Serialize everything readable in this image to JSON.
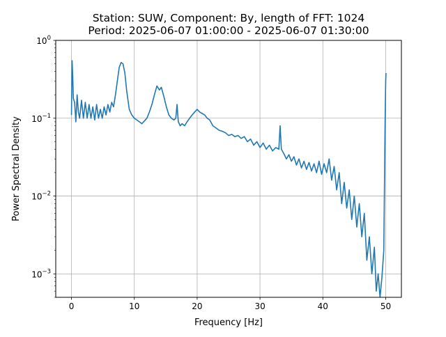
{
  "chart_data": {
    "type": "line",
    "title_line1": "Station: SUW, Component: By, length of FFT: 1024",
    "title_line2": "Period: 2025-06-07 01:00:00 - 2025-06-07 01:30:00",
    "xlabel": "Frequency [Hz]",
    "ylabel": "Power Spectral Density",
    "xlim": [
      -2.5,
      52.5
    ],
    "ylim": [
      0.0005,
      1
    ],
    "yscale": "log",
    "grid": true,
    "x_ticks": [
      {
        "value": 0,
        "label": "0"
      },
      {
        "value": 10,
        "label": "10"
      },
      {
        "value": 20,
        "label": "20"
      },
      {
        "value": 30,
        "label": "30"
      },
      {
        "value": 40,
        "label": "40"
      },
      {
        "value": 50,
        "label": "50"
      }
    ],
    "y_ticks": [
      {
        "value": 0.001,
        "base": "10",
        "exp": "−3"
      },
      {
        "value": 0.01,
        "base": "10",
        "exp": "−2"
      },
      {
        "value": 0.1,
        "base": "10",
        "exp": "−1"
      },
      {
        "value": 1,
        "base": "10",
        "exp": "0"
      }
    ],
    "series": [
      {
        "color": "#1f77b4",
        "points": [
          [
            0.0,
            0.11
          ],
          [
            0.1,
            0.55
          ],
          [
            0.2,
            0.35
          ],
          [
            0.3,
            0.18
          ],
          [
            0.5,
            0.16
          ],
          [
            0.7,
            0.09
          ],
          [
            0.9,
            0.2
          ],
          [
            1.1,
            0.12
          ],
          [
            1.3,
            0.1
          ],
          [
            1.6,
            0.17
          ],
          [
            1.9,
            0.1
          ],
          [
            2.2,
            0.16
          ],
          [
            2.5,
            0.1
          ],
          [
            2.8,
            0.15
          ],
          [
            3.1,
            0.1
          ],
          [
            3.4,
            0.14
          ],
          [
            3.7,
            0.095
          ],
          [
            4.0,
            0.15
          ],
          [
            4.3,
            0.1
          ],
          [
            4.6,
            0.13
          ],
          [
            4.9,
            0.1
          ],
          [
            5.2,
            0.14
          ],
          [
            5.5,
            0.11
          ],
          [
            5.8,
            0.15
          ],
          [
            6.1,
            0.12
          ],
          [
            6.4,
            0.16
          ],
          [
            6.7,
            0.14
          ],
          [
            7.0,
            0.2
          ],
          [
            7.3,
            0.3
          ],
          [
            7.6,
            0.45
          ],
          [
            7.9,
            0.52
          ],
          [
            8.2,
            0.5
          ],
          [
            8.5,
            0.38
          ],
          [
            8.8,
            0.22
          ],
          [
            9.2,
            0.13
          ],
          [
            9.6,
            0.11
          ],
          [
            10.0,
            0.1
          ],
          [
            10.4,
            0.095
          ],
          [
            10.8,
            0.09
          ],
          [
            11.2,
            0.085
          ],
          [
            11.6,
            0.092
          ],
          [
            12.0,
            0.1
          ],
          [
            12.4,
            0.12
          ],
          [
            12.8,
            0.15
          ],
          [
            13.2,
            0.2
          ],
          [
            13.6,
            0.26
          ],
          [
            14.0,
            0.23
          ],
          [
            14.3,
            0.25
          ],
          [
            14.7,
            0.19
          ],
          [
            15.1,
            0.14
          ],
          [
            15.5,
            0.11
          ],
          [
            15.9,
            0.1
          ],
          [
            16.3,
            0.095
          ],
          [
            16.6,
            0.1
          ],
          [
            16.8,
            0.15
          ],
          [
            17.0,
            0.09
          ],
          [
            17.3,
            0.08
          ],
          [
            17.6,
            0.085
          ],
          [
            18.0,
            0.08
          ],
          [
            18.4,
            0.09
          ],
          [
            18.8,
            0.1
          ],
          [
            19.2,
            0.11
          ],
          [
            19.6,
            0.12
          ],
          [
            20.0,
            0.13
          ],
          [
            20.4,
            0.12
          ],
          [
            20.8,
            0.115
          ],
          [
            21.2,
            0.11
          ],
          [
            21.6,
            0.1
          ],
          [
            22.0,
            0.095
          ],
          [
            22.5,
            0.08
          ],
          [
            23.0,
            0.075
          ],
          [
            23.5,
            0.07
          ],
          [
            24.0,
            0.068
          ],
          [
            24.5,
            0.065
          ],
          [
            25.0,
            0.06
          ],
          [
            25.5,
            0.062
          ],
          [
            26.0,
            0.058
          ],
          [
            26.5,
            0.06
          ],
          [
            27.0,
            0.055
          ],
          [
            27.5,
            0.058
          ],
          [
            28.0,
            0.05
          ],
          [
            28.5,
            0.054
          ],
          [
            29.0,
            0.045
          ],
          [
            29.5,
            0.05
          ],
          [
            30.0,
            0.042
          ],
          [
            30.5,
            0.048
          ],
          [
            31.0,
            0.04
          ],
          [
            31.5,
            0.045
          ],
          [
            32.0,
            0.038
          ],
          [
            32.5,
            0.042
          ],
          [
            33.0,
            0.04
          ],
          [
            33.2,
            0.08
          ],
          [
            33.4,
            0.04
          ],
          [
            33.8,
            0.035
          ],
          [
            34.2,
            0.03
          ],
          [
            34.6,
            0.034
          ],
          [
            35.0,
            0.028
          ],
          [
            35.4,
            0.032
          ],
          [
            35.8,
            0.025
          ],
          [
            36.2,
            0.03
          ],
          [
            36.6,
            0.023
          ],
          [
            37.0,
            0.028
          ],
          [
            37.4,
            0.022
          ],
          [
            37.8,
            0.027
          ],
          [
            38.2,
            0.021
          ],
          [
            38.6,
            0.026
          ],
          [
            39.0,
            0.02
          ],
          [
            39.4,
            0.028
          ],
          [
            39.8,
            0.019
          ],
          [
            40.2,
            0.026
          ],
          [
            40.6,
            0.02
          ],
          [
            41.0,
            0.03
          ],
          [
            41.4,
            0.016
          ],
          [
            41.8,
            0.024
          ],
          [
            42.2,
            0.012
          ],
          [
            42.6,
            0.02
          ],
          [
            43.0,
            0.008
          ],
          [
            43.4,
            0.015
          ],
          [
            43.8,
            0.007
          ],
          [
            44.2,
            0.012
          ],
          [
            44.6,
            0.005
          ],
          [
            45.0,
            0.01
          ],
          [
            45.4,
            0.004
          ],
          [
            45.8,
            0.008
          ],
          [
            46.2,
            0.003
          ],
          [
            46.6,
            0.006
          ],
          [
            47.0,
            0.0015
          ],
          [
            47.4,
            0.003
          ],
          [
            47.8,
            0.001
          ],
          [
            48.2,
            0.0022
          ],
          [
            48.5,
            0.0006
          ],
          [
            48.8,
            0.001
          ],
          [
            49.1,
            0.0005
          ],
          [
            49.4,
            0.0009
          ],
          [
            49.7,
            0.002
          ],
          [
            49.9,
            0.08
          ],
          [
            50.0,
            0.3
          ],
          [
            50.05,
            0.38
          ]
        ]
      }
    ]
  }
}
